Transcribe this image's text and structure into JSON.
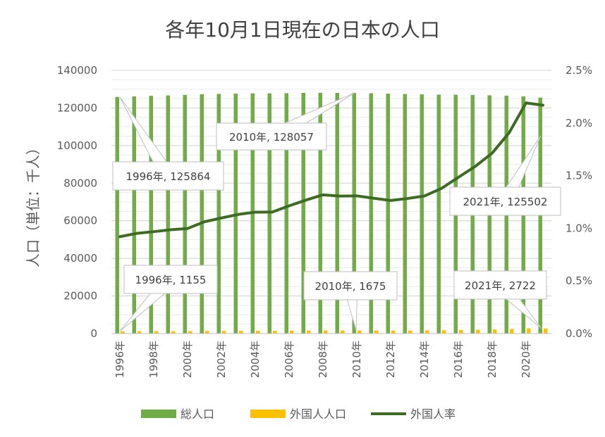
{
  "colors": {
    "total": "#70ad47",
    "foreign": "#ffc000",
    "rate": "#3d6b24",
    "grid": "#d9d9d9",
    "callout_border": "#bfbfbf"
  },
  "chart_data": {
    "type": "bar",
    "title": "各年10月1日現在の日本の人口",
    "ylabel": "人口（単位：千人）",
    "ylim": [
      0,
      140000
    ],
    "y2lim": [
      0,
      0.025
    ],
    "y_ticks": [
      "0",
      "20000",
      "40000",
      "60000",
      "80000",
      "100000",
      "120000",
      "140000"
    ],
    "y2_ticks": [
      "0.0%",
      "0.5%",
      "1.0%",
      "1.5%",
      "2.0%",
      "2.5%"
    ],
    "grid": true,
    "legend_position": "bottom",
    "categories": [
      "1996年",
      "1997年",
      "1998年",
      "1999年",
      "2000年",
      "2001年",
      "2002年",
      "2003年",
      "2004年",
      "2005年",
      "2006年",
      "2007年",
      "2008年",
      "2009年",
      "2010年",
      "2011年",
      "2012年",
      "2013年",
      "2014年",
      "2015年",
      "2016年",
      "2017年",
      "2018年",
      "2019年",
      "2020年",
      "2021年"
    ],
    "x_tick_labels": [
      "1996年",
      "1998年",
      "2000年",
      "2002年",
      "2004年",
      "2006年",
      "2008年",
      "2010年",
      "2012年",
      "2014年",
      "2016年",
      "2018年",
      "2020年"
    ],
    "series": [
      {
        "name": "総人口",
        "type": "bar",
        "axis": "left",
        "values": [
          125864,
          126166,
          126486,
          126686,
          126926,
          127316,
          127486,
          127694,
          127787,
          127768,
          127901,
          128033,
          128084,
          128032,
          128057,
          127834,
          127593,
          127414,
          127237,
          127095,
          127042,
          126919,
          126749,
          126555,
          126146,
          125502
        ]
      },
      {
        "name": "外国人人口",
        "type": "bar",
        "axis": "left",
        "values": [
          1155,
          1201,
          1225,
          1249,
          1267,
          1352,
          1400,
          1445,
          1473,
          1475,
          1552,
          1624,
          1688,
          1672,
          1675,
          1643,
          1613,
          1635,
          1663,
          1752,
          1885,
          2016,
          2172,
          2413,
          2764,
          2722
        ]
      },
      {
        "name": "外国人率",
        "type": "line",
        "axis": "right",
        "values": [
          0.0092,
          0.00952,
          0.00968,
          0.00986,
          0.00998,
          0.01062,
          0.01098,
          0.01132,
          0.01153,
          0.01154,
          0.01213,
          0.01268,
          0.01318,
          0.01306,
          0.01308,
          0.01285,
          0.01264,
          0.01283,
          0.01307,
          0.01378,
          0.01484,
          0.01588,
          0.01714,
          0.01907,
          0.02191,
          0.02169
        ]
      }
    ],
    "annotations": [
      {
        "text": "1996年, 125864",
        "series": 0,
        "index": 0
      },
      {
        "text": "2010年, 128057",
        "series": 0,
        "index": 14
      },
      {
        "text": "2021年, 125502",
        "series": 0,
        "index": 25
      },
      {
        "text": "1996年, 1155",
        "series": 1,
        "index": 0
      },
      {
        "text": "2010年, 1675",
        "series": 1,
        "index": 14
      },
      {
        "text": "2021年, 2722",
        "series": 1,
        "index": 25
      }
    ]
  }
}
